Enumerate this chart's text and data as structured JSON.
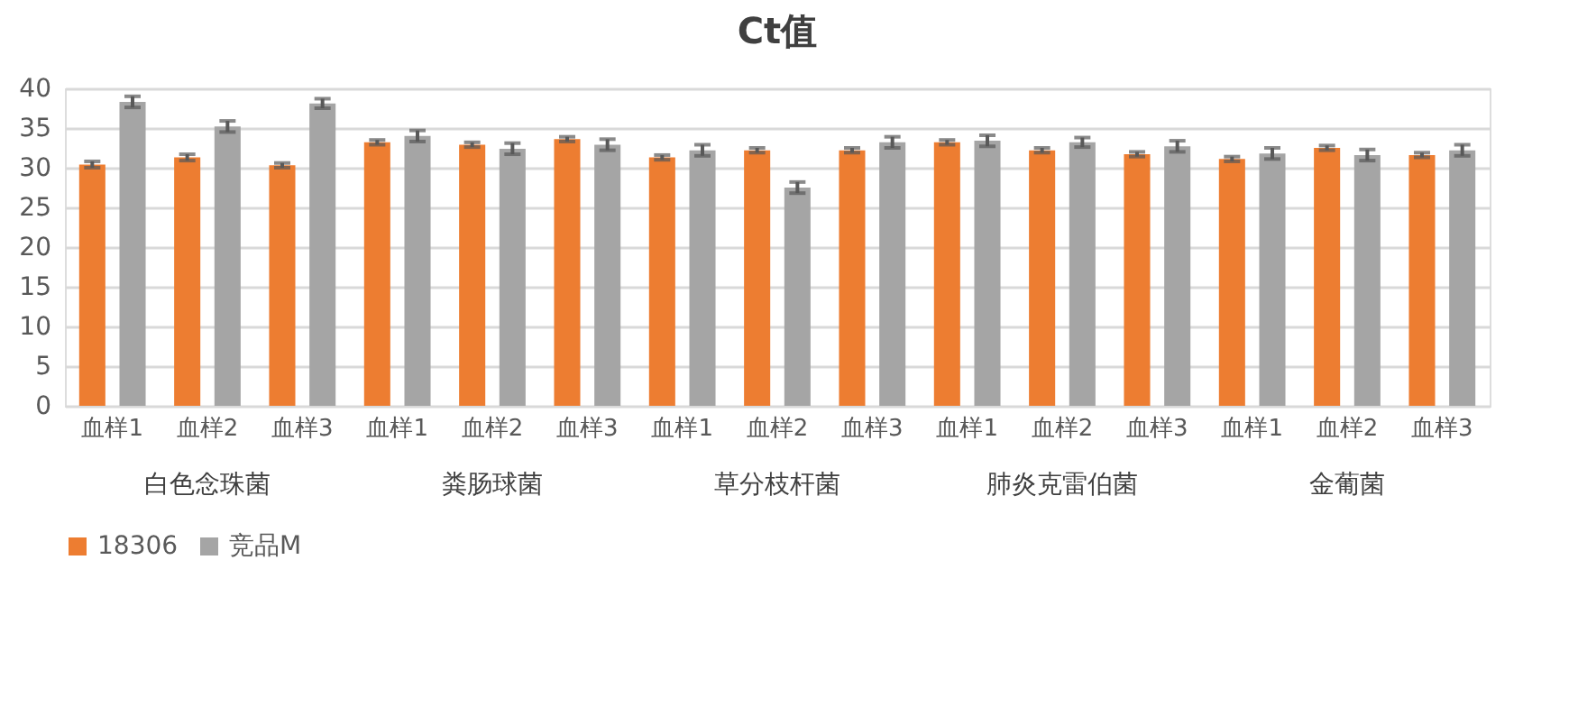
{
  "chart_data": {
    "type": "bar",
    "title": "Ct值",
    "categories": [
      "血样1",
      "血样2",
      "血样3",
      "血样1",
      "血样2",
      "血样3",
      "血样1",
      "血样2",
      "血样3",
      "血样1",
      "血样2",
      "血样3",
      "血样1",
      "血样2",
      "血样3"
    ],
    "annotations": [
      "白色念珠菌",
      "粪肠球菌",
      "草分枝杆菌",
      "肺炎克雷伯菌",
      "金葡菌"
    ],
    "ylim": [
      0,
      40
    ],
    "yticks": [
      0,
      5,
      10,
      15,
      20,
      25,
      30,
      35,
      40
    ],
    "grid": "y",
    "legend": "bottom",
    "series": [
      {
        "name": "18306",
        "color": "#ed7d31",
        "values": [
          30.4,
          31.3,
          30.3,
          33.2,
          32.9,
          33.6,
          31.3,
          32.2,
          32.2,
          33.2,
          32.2,
          31.7,
          31.1,
          32.5,
          31.6
        ],
        "errors": [
          0.4,
          0.4,
          0.3,
          0.3,
          0.3,
          0.3,
          0.3,
          0.3,
          0.3,
          0.3,
          0.3,
          0.3,
          0.3,
          0.3,
          0.3
        ]
      },
      {
        "name": "竞品M",
        "color": "#a5a5a5",
        "values": [
          38.3,
          35.2,
          38.1,
          34.0,
          32.4,
          32.9,
          32.2,
          27.5,
          33.2,
          33.4,
          33.2,
          32.7,
          31.8,
          31.6,
          32.2
        ],
        "errors": [
          0.7,
          0.7,
          0.6,
          0.7,
          0.7,
          0.7,
          0.7,
          0.7,
          0.7,
          0.7,
          0.6,
          0.7,
          0.7,
          0.7,
          0.7
        ]
      }
    ]
  }
}
